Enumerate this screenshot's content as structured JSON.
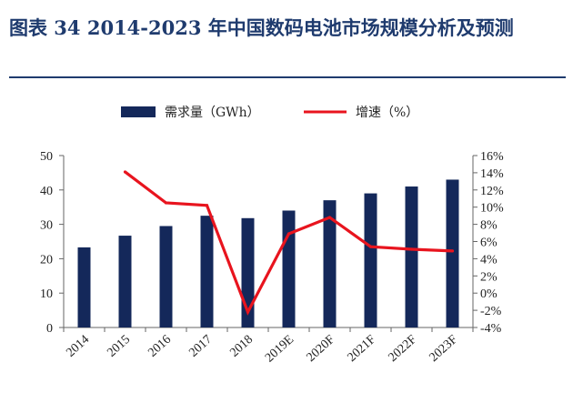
{
  "title": "图表 34 2014-2023 年中国数码电池市场规模分析及预测",
  "chart_data": {
    "type": "bar",
    "categories": [
      "2014",
      "2015",
      "2016",
      "2017",
      "2018",
      "2019E",
      "2020F",
      "2021F",
      "2022F",
      "2023F"
    ],
    "series": [
      {
        "name": "需求量（GWh）",
        "type": "bar",
        "axis": "left",
        "values": [
          23.3,
          26.7,
          29.5,
          32.5,
          31.8,
          34.0,
          37.0,
          39.0,
          41.0,
          43.0
        ],
        "color": "#14285a"
      },
      {
        "name": "增速（%）",
        "type": "line",
        "axis": "right",
        "values": [
          null,
          14.1,
          10.5,
          10.2,
          -2.2,
          6.9,
          8.8,
          5.4,
          5.1,
          4.9
        ],
        "color": "#e8141e"
      }
    ],
    "y_left": {
      "min": 0,
      "max": 50,
      "ticks": [
        "0",
        "10",
        "20",
        "30",
        "40",
        "50"
      ]
    },
    "y_right": {
      "min": -4,
      "max": 16,
      "ticks": [
        "-4%",
        "-2%",
        "0%",
        "2%",
        "4%",
        "6%",
        "8%",
        "10%",
        "12%",
        "14%",
        "16%"
      ]
    },
    "legend_position": "top-center",
    "grid": false
  }
}
